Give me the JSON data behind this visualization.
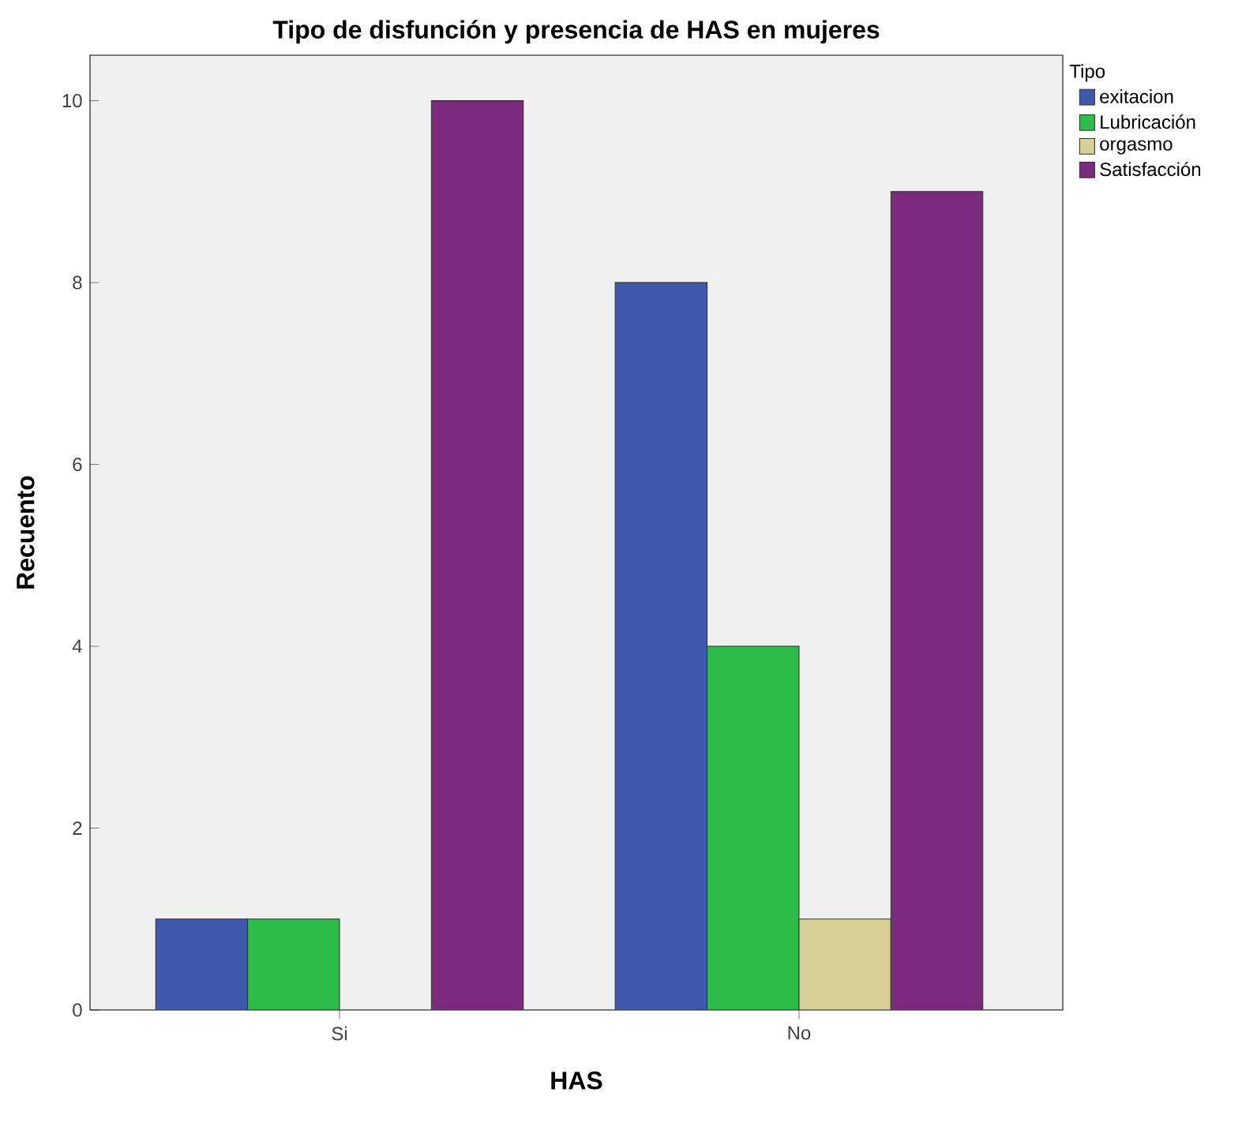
{
  "chart_data": {
    "type": "bar",
    "title": "Tipo de disfunción y presencia de HAS en mujeres",
    "xlabel": "HAS",
    "ylabel": "Recuento",
    "legend_title": "Tipo",
    "categories": [
      "Si",
      "No"
    ],
    "series": [
      {
        "name": "exitacion",
        "color": "#3e58ac",
        "values": [
          1,
          8
        ]
      },
      {
        "name": "Lubricación",
        "color": "#2ebb4a",
        "values": [
          1,
          4
        ]
      },
      {
        "name": "orgasmo",
        "color": "#d6cf96",
        "values": [
          null,
          1
        ]
      },
      {
        "name": "Satisfacción",
        "color": "#7b2a7d",
        "values": [
          10,
          9
        ]
      }
    ],
    "ylim": [
      0,
      10.5
    ],
    "yticks": [
      0,
      2,
      4,
      6,
      8,
      10
    ],
    "grid": false,
    "legend": "right"
  }
}
